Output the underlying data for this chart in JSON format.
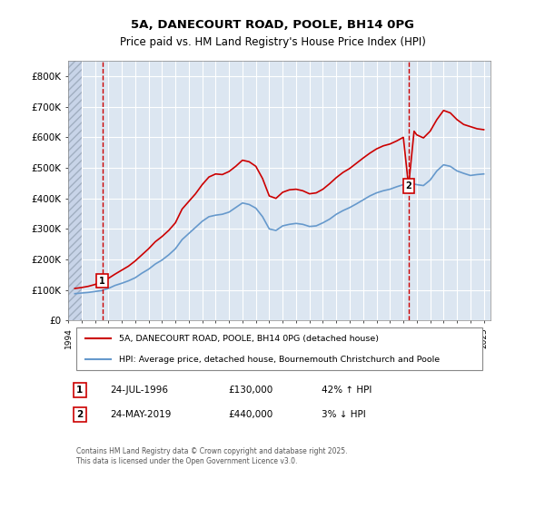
{
  "title_line1": "5A, DANECOURT ROAD, POOLE, BH14 0PG",
  "title_line2": "Price paid vs. HM Land Registry's House Price Index (HPI)",
  "ylabel": "",
  "xlim_start": 1994.0,
  "xlim_end": 2025.5,
  "ylim": [
    0,
    850000
  ],
  "yticks": [
    0,
    100000,
    200000,
    300000,
    400000,
    500000,
    600000,
    700000,
    800000
  ],
  "ytick_labels": [
    "£0",
    "£100K",
    "£200K",
    "£300K",
    "£400K",
    "£500K",
    "£600K",
    "£700K",
    "£800K"
  ],
  "red_line_color": "#cc0000",
  "blue_line_color": "#6699cc",
  "dashed_line_color": "#cc0000",
  "background_color": "#dce6f1",
  "hatch_color": "#c0c8d8",
  "grid_color": "#ffffff",
  "sale1_x": 1996.56,
  "sale1_y": 130000,
  "sale1_label": "1",
  "sale2_x": 2019.39,
  "sale2_y": 440000,
  "sale2_label": "2",
  "legend_red": "5A, DANECOURT ROAD, POOLE, BH14 0PG (detached house)",
  "legend_blue": "HPI: Average price, detached house, Bournemouth Christchurch and Poole",
  "annotation1": "1    24-JUL-1996    £130,000    42% ↑ HPI",
  "annotation2": "2    24-MAY-2019    £440,000    3% ↓ HPI",
  "footer": "Contains HM Land Registry data © Crown copyright and database right 2025.\nThis data is licensed under the Open Government Licence v3.0.",
  "hpi_x": [
    1994.5,
    1995.0,
    1995.5,
    1996.0,
    1996.5,
    1997.0,
    1997.5,
    1998.0,
    1998.5,
    1999.0,
    1999.5,
    2000.0,
    2000.5,
    2001.0,
    2001.5,
    2002.0,
    2002.5,
    2003.0,
    2003.5,
    2004.0,
    2004.5,
    2005.0,
    2005.5,
    2006.0,
    2006.5,
    2007.0,
    2007.5,
    2008.0,
    2008.5,
    2009.0,
    2009.5,
    2010.0,
    2010.5,
    2011.0,
    2011.5,
    2012.0,
    2012.5,
    2013.0,
    2013.5,
    2014.0,
    2014.5,
    2015.0,
    2015.5,
    2016.0,
    2016.5,
    2017.0,
    2017.5,
    2018.0,
    2018.5,
    2019.0,
    2019.5,
    2020.0,
    2020.5,
    2021.0,
    2021.5,
    2022.0,
    2022.5,
    2023.0,
    2023.5,
    2024.0,
    2024.5,
    2025.0
  ],
  "hpi_y": [
    88000,
    90000,
    92000,
    95000,
    98000,
    105000,
    115000,
    122000,
    130000,
    140000,
    155000,
    168000,
    185000,
    198000,
    215000,
    235000,
    265000,
    285000,
    305000,
    325000,
    340000,
    345000,
    348000,
    355000,
    370000,
    385000,
    380000,
    368000,
    340000,
    300000,
    295000,
    310000,
    315000,
    318000,
    315000,
    308000,
    310000,
    320000,
    332000,
    348000,
    360000,
    370000,
    382000,
    395000,
    408000,
    418000,
    425000,
    430000,
    438000,
    445000,
    450000,
    445000,
    442000,
    460000,
    490000,
    510000,
    505000,
    490000,
    482000,
    475000,
    478000,
    480000
  ],
  "red_x": [
    1994.5,
    1995.0,
    1995.5,
    1996.0,
    1996.56,
    1997.0,
    1997.5,
    1998.0,
    1998.5,
    1999.0,
    1999.5,
    2000.0,
    2000.5,
    2001.0,
    2001.5,
    2002.0,
    2002.5,
    2003.0,
    2003.5,
    2004.0,
    2004.5,
    2005.0,
    2005.5,
    2006.0,
    2006.5,
    2007.0,
    2007.5,
    2008.0,
    2008.5,
    2009.0,
    2009.5,
    2010.0,
    2010.5,
    2011.0,
    2011.5,
    2012.0,
    2012.5,
    2013.0,
    2013.5,
    2014.0,
    2014.5,
    2015.0,
    2015.5,
    2016.0,
    2016.5,
    2017.0,
    2017.5,
    2018.0,
    2018.5,
    2019.0,
    2019.39,
    2019.8,
    2020.0,
    2020.5,
    2021.0,
    2021.5,
    2022.0,
    2022.5,
    2023.0,
    2023.5,
    2024.0,
    2024.5,
    2025.0
  ],
  "red_y": [
    105000,
    108000,
    112000,
    118000,
    130000,
    138000,
    152000,
    165000,
    178000,
    195000,
    215000,
    235000,
    258000,
    275000,
    295000,
    320000,
    365000,
    390000,
    415000,
    445000,
    470000,
    480000,
    478000,
    488000,
    505000,
    525000,
    520000,
    505000,
    465000,
    408000,
    400000,
    420000,
    428000,
    430000,
    425000,
    415000,
    418000,
    430000,
    448000,
    468000,
    485000,
    498000,
    515000,
    532000,
    548000,
    562000,
    572000,
    578000,
    588000,
    600000,
    440000,
    620000,
    608000,
    598000,
    620000,
    658000,
    688000,
    680000,
    658000,
    642000,
    635000,
    628000,
    625000
  ]
}
